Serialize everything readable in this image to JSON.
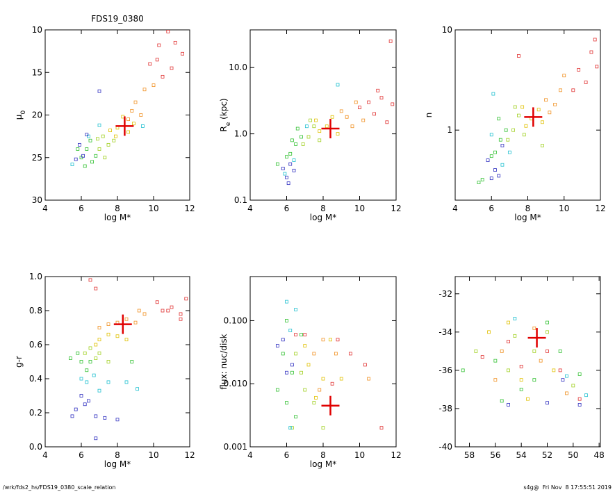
{
  "footer": {
    "left": "/wrk/fds2_hs/FDS19_0380_scale_relation",
    "right": "s4g@  Fri Nov  8 17:55:51 2019"
  },
  "chart_data": [
    {
      "type": "scatter",
      "title": "FDS19_0380",
      "xlabel": "log M*",
      "ylabel": [
        {
          "text": "μ"
        },
        {
          "text": "0",
          "sub": true
        }
      ],
      "xlim": [
        4,
        12
      ],
      "xticks": [
        4,
        6,
        8,
        10,
        12
      ],
      "ylim": [
        30,
        10
      ],
      "yticks": [
        10,
        15,
        20,
        25,
        30
      ],
      "marker": {
        "x": 8.4,
        "y": 21.3,
        "color": "#e00000"
      },
      "series": [
        {
          "color": "#e03030",
          "x": [
            10.2,
            10.8,
            11.2,
            11.6,
            10.5,
            9.8,
            11,
            10.3
          ],
          "values": [
            13.5,
            10.2,
            11.5,
            12.8,
            15.5,
            14,
            14.5,
            11.8
          ]
        },
        {
          "color": "#f09020",
          "x": [
            9,
            9.5,
            8.8,
            9.3,
            10,
            8.6
          ],
          "values": [
            18.5,
            17,
            19.5,
            20,
            16.5,
            20.5
          ]
        },
        {
          "color": "#e0c000",
          "x": [
            8,
            8.3,
            7.9,
            8.6,
            7.6,
            8.9
          ],
          "values": [
            21.5,
            20.2,
            22.5,
            22,
            21.8,
            21
          ]
        },
        {
          "color": "#a0d020",
          "x": [
            7.2,
            7.5,
            7,
            7.8,
            6.9,
            7.3
          ],
          "values": [
            22.5,
            23.5,
            24,
            23,
            22.8,
            25
          ]
        },
        {
          "color": "#30c030",
          "x": [
            6.3,
            6.5,
            6.8,
            6,
            5.8,
            6.6,
            6.2
          ],
          "values": [
            24,
            23,
            24.8,
            25,
            24,
            25.5,
            26
          ]
        },
        {
          "color": "#20c0d0",
          "x": [
            6.4,
            7,
            5.5,
            9.4
          ],
          "values": [
            22.5,
            21.2,
            25.8,
            21.3
          ]
        },
        {
          "color": "#3030c0",
          "x": [
            5.9,
            6.1,
            6.3,
            5.7,
            7
          ],
          "values": [
            23.5,
            24.8,
            22.3,
            25.2,
            17.2
          ]
        }
      ]
    },
    {
      "type": "scatter",
      "xlabel": "log M*",
      "ylabel": [
        {
          "text": "R"
        },
        {
          "text": "e",
          "sub": true
        },
        {
          "text": " (kpc)"
        }
      ],
      "xlim": [
        4,
        12
      ],
      "xticks": [
        4,
        6,
        8,
        10,
        12
      ],
      "ylim": [
        0.1,
        37
      ],
      "log_y": true,
      "yticks": [
        0.1,
        {
          "value": 1,
          "label": "1.0"
        },
        {
          "value": 10,
          "label": "10.0"
        }
      ],
      "marker": {
        "x": 8.4,
        "y": 1.2,
        "color": "#e00000"
      },
      "series": [
        {
          "color": "#e03030",
          "x": [
            10.5,
            11,
            11.5,
            11.8,
            10.8,
            10,
            11.2,
            11.7
          ],
          "values": [
            3,
            4.5,
            1.5,
            2.8,
            2,
            2.5,
            3.5,
            25
          ]
        },
        {
          "color": "#f09020",
          "x": [
            9.3,
            9.6,
            9,
            9.8,
            10.2
          ],
          "values": [
            1.8,
            1.3,
            2.2,
            3,
            1.6
          ]
        },
        {
          "color": "#e0c000",
          "x": [
            8.2,
            8.5,
            7.8,
            8.8,
            7.6
          ],
          "values": [
            1.3,
            1.8,
            1.1,
            1,
            1.6
          ]
        },
        {
          "color": "#a0d020",
          "x": [
            7.2,
            7.5,
            6.9,
            7.8,
            7.3
          ],
          "values": [
            0.9,
            1.3,
            0.7,
            0.8,
            1.6
          ]
        },
        {
          "color": "#30c030",
          "x": [
            6.5,
            6.2,
            6.8,
            6,
            6.6,
            5.5,
            6.3
          ],
          "values": [
            0.7,
            0.5,
            0.9,
            0.45,
            1.2,
            0.35,
            0.8
          ]
        },
        {
          "color": "#20c0d0",
          "x": [
            6.4,
            8.8,
            5.9,
            7.1
          ],
          "values": [
            0.4,
            5.5,
            0.25,
            1.3
          ]
        },
        {
          "color": "#3030c0",
          "x": [
            6,
            6.2,
            5.8,
            6.4,
            6.1
          ],
          "values": [
            0.22,
            0.35,
            0.3,
            0.28,
            0.18
          ]
        }
      ]
    },
    {
      "type": "scatter",
      "xlabel": "log M*",
      "ylabel": [
        {
          "text": "n"
        }
      ],
      "xlim": [
        4,
        12
      ],
      "xticks": [
        4,
        6,
        8,
        10,
        12
      ],
      "ylim": [
        0.2,
        10
      ],
      "log_y": true,
      "yticks": [
        1,
        10
      ],
      "marker": {
        "x": 8.3,
        "y": 1.35,
        "color": "#e00000"
      },
      "series": [
        {
          "color": "#e03030",
          "x": [
            10.8,
            11.5,
            11.7,
            11.2,
            10.5,
            11.8,
            7.5
          ],
          "values": [
            4,
            6,
            8,
            3,
            2.5,
            4.3,
            5.5
          ]
        },
        {
          "color": "#f09020",
          "x": [
            9.5,
            9.8,
            9.2,
            10,
            9
          ],
          "values": [
            1.8,
            2.5,
            1.5,
            3.5,
            2
          ]
        },
        {
          "color": "#e0c000",
          "x": [
            8.2,
            8.6,
            7.9,
            8.8,
            7.7
          ],
          "values": [
            1.3,
            1.6,
            1.1,
            1.2,
            1.7
          ]
        },
        {
          "color": "#a0d020",
          "x": [
            7.2,
            7.5,
            6.9,
            7.8,
            7.3,
            8.8
          ],
          "values": [
            1,
            1.4,
            0.8,
            0.9,
            1.7,
            0.7
          ]
        },
        {
          "color": "#30c030",
          "x": [
            6.5,
            6.2,
            6.8,
            6,
            5.5,
            5.3,
            6.4
          ],
          "values": [
            0.8,
            0.6,
            1,
            0.55,
            0.32,
            0.3,
            1.3
          ]
        },
        {
          "color": "#20c0d0",
          "x": [
            6.1,
            6.6,
            7,
            6
          ],
          "values": [
            2.3,
            0.45,
            0.6,
            0.9
          ]
        },
        {
          "color": "#3030c0",
          "x": [
            6.2,
            5.8,
            6,
            6.4,
            6.6
          ],
          "values": [
            0.4,
            0.5,
            0.33,
            0.35,
            0.7
          ]
        }
      ]
    },
    {
      "type": "scatter",
      "xlabel": "log M*",
      "ylabel": [
        {
          "text": "g-r"
        }
      ],
      "xlim": [
        4,
        12
      ],
      "xticks": [
        4,
        6,
        8,
        10,
        12
      ],
      "ylim": [
        0,
        1
      ],
      "yticks": [
        {
          "value": 0,
          "label": "0.0"
        },
        0.2,
        0.4,
        0.6,
        0.8,
        {
          "value": 1,
          "label": "1.0"
        }
      ],
      "marker": {
        "x": 8.3,
        "y": 0.72,
        "color": "#e00000"
      },
      "series": [
        {
          "color": "#e03030",
          "x": [
            10.5,
            11,
            11.5,
            11.8,
            10.2,
            6.8,
            6.5,
            11.5,
            10.8
          ],
          "values": [
            0.8,
            0.82,
            0.78,
            0.87,
            0.85,
            0.93,
            0.98,
            0.75,
            0.8
          ]
        },
        {
          "color": "#f09020",
          "x": [
            8.5,
            9,
            9.5,
            8,
            7.5,
            7,
            9.2
          ],
          "values": [
            0.75,
            0.73,
            0.78,
            0.73,
            0.72,
            0.7,
            0.8
          ]
        },
        {
          "color": "#e0c000",
          "x": [
            7.5,
            8,
            7,
            8.5,
            6.8
          ],
          "values": [
            0.66,
            0.65,
            0.63,
            0.63,
            0.6
          ]
        },
        {
          "color": "#a0d020",
          "x": [
            6.5,
            7,
            6.8,
            7.5,
            6.2
          ],
          "values": [
            0.58,
            0.55,
            0.52,
            0.5,
            0.55
          ]
        },
        {
          "color": "#30c030",
          "x": [
            6,
            5.8,
            6.5,
            5.4,
            6.3,
            8.8
          ],
          "values": [
            0.5,
            0.55,
            0.5,
            0.52,
            0.45,
            0.5
          ]
        },
        {
          "color": "#20c0d0",
          "x": [
            6,
            6.3,
            6.7,
            7,
            7.5,
            8.5,
            9.1
          ],
          "values": [
            0.4,
            0.38,
            0.42,
            0.33,
            0.38,
            0.38,
            0.34
          ]
        },
        {
          "color": "#3030c0",
          "x": [
            5.7,
            6.2,
            6.4,
            6,
            6.8,
            7.3,
            5.5,
            8,
            6.8
          ],
          "values": [
            0.22,
            0.25,
            0.27,
            0.3,
            0.18,
            0.17,
            0.18,
            0.16,
            0.05
          ]
        }
      ]
    },
    {
      "type": "scatter",
      "xlabel": "log M*",
      "ylabel": [
        {
          "text": "flux: nuc/disk"
        }
      ],
      "xlim": [
        4,
        12
      ],
      "xticks": [
        4,
        6,
        8,
        10,
        12
      ],
      "ylim": [
        0.001,
        0.5
      ],
      "log_y": true,
      "yticks": [
        0.001,
        {
          "value": 0.01,
          "label": "0.010"
        },
        {
          "value": 0.1,
          "label": "0.100"
        }
      ],
      "marker": {
        "x": 8.4,
        "y": 0.0045,
        "color": "#e00000"
      },
      "series": [
        {
          "color": "#e03030",
          "x": [
            7,
            8.5,
            9.5,
            10.3,
            11.2,
            8.8,
            6.5
          ],
          "values": [
            0.06,
            0.01,
            0.03,
            0.02,
            0.002,
            0.05,
            0.06
          ]
        },
        {
          "color": "#f09020",
          "x": [
            8,
            7.5,
            8.7,
            10.5,
            7.8
          ],
          "values": [
            0.05,
            0.03,
            0.03,
            0.012,
            0.008
          ]
        },
        {
          "color": "#e0c000",
          "x": [
            7,
            7.2,
            8,
            7.6,
            8.4,
            9
          ],
          "values": [
            0.04,
            0.02,
            0.012,
            0.006,
            0.05,
            0.012
          ]
        },
        {
          "color": "#a0d020",
          "x": [
            6.5,
            6.8,
            7.5,
            7,
            6.3,
            8
          ],
          "values": [
            0.03,
            0.015,
            0.005,
            0.008,
            0.002,
            0.002
          ]
        },
        {
          "color": "#30c030",
          "x": [
            6,
            5.8,
            6.3,
            6.8,
            6,
            5.5,
            6.5
          ],
          "values": [
            0.1,
            0.03,
            0.015,
            0.06,
            0.005,
            0.008,
            0.003
          ]
        },
        {
          "color": "#20c0d0",
          "x": [
            6,
            6.2,
            6.5,
            6.2
          ],
          "values": [
            0.2,
            0.07,
            0.15,
            0.002
          ]
        },
        {
          "color": "#3030c0",
          "x": [
            5.8,
            6.3,
            5.5,
            6
          ],
          "values": [
            0.05,
            0.02,
            0.04,
            0.015
          ]
        }
      ]
    },
    {
      "type": "scatter",
      "xlim": [
        59.1,
        47.9
      ],
      "xticks": [
        58,
        56,
        54,
        52,
        50,
        48
      ],
      "ylim": [
        -40,
        -31.1
      ],
      "yticks": [
        -40,
        -38,
        -36,
        -34,
        -32
      ],
      "marker": {
        "x": 52.8,
        "y": -34.3,
        "color": "#e00000"
      },
      "series": [
        {
          "color": "#e03030",
          "x": [
            55,
            52,
            51,
            49.5,
            54,
            57
          ],
          "values": [
            -34.5,
            -35,
            -36,
            -37.5,
            -35.8,
            -35.3
          ]
        },
        {
          "color": "#f09020",
          "x": [
            55.5,
            53,
            52.5,
            50.5,
            56
          ],
          "values": [
            -35,
            -33.8,
            -35.5,
            -37.2,
            -36.5
          ]
        },
        {
          "color": "#e0c000",
          "x": [
            56.5,
            54,
            51.5,
            53.5,
            55
          ],
          "values": [
            -34,
            -36.5,
            -36,
            -37.5,
            -33.5
          ]
        },
        {
          "color": "#a0d020",
          "x": [
            57.5,
            55,
            53,
            52,
            54.5,
            50
          ],
          "values": [
            -35,
            -36,
            -35,
            -34,
            -34.2,
            -36.8
          ]
        },
        {
          "color": "#30c030",
          "x": [
            58.5,
            56,
            54,
            52,
            53,
            51,
            49.5,
            55.5
          ],
          "values": [
            -36,
            -35.5,
            -37,
            -33.5,
            -36.5,
            -35,
            -36.2,
            -37.6
          ]
        },
        {
          "color": "#20c0d0",
          "x": [
            49,
            50.5,
            54.5
          ],
          "values": [
            -37.3,
            -36.3,
            -33.3
          ]
        },
        {
          "color": "#3030c0",
          "x": [
            49.5,
            50.8,
            55,
            52
          ],
          "values": [
            -37.8,
            -36.5,
            -37.8,
            -37.7
          ]
        }
      ]
    }
  ]
}
